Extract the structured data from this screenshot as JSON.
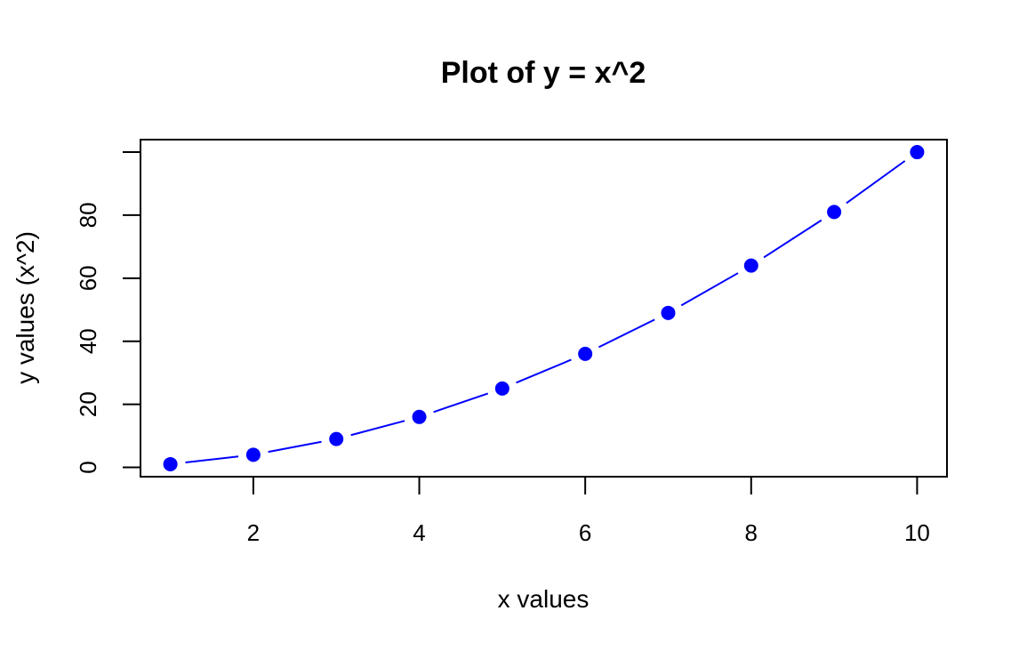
{
  "chart_data": {
    "type": "line",
    "title": "Plot of y = x^2",
    "xlabel": "x values",
    "ylabel": "y values (x^2)",
    "x": [
      1,
      2,
      3,
      4,
      5,
      6,
      7,
      8,
      9,
      10
    ],
    "series": [
      {
        "values": [
          1,
          4,
          9,
          16,
          25,
          36,
          49,
          64,
          81,
          100
        ],
        "color": "#0000ff"
      }
    ],
    "xlim": [
      0.64,
      10.36
    ],
    "ylim": [
      -2.96,
      103.96
    ],
    "xticks": [
      2,
      4,
      6,
      8,
      10
    ],
    "yticks": [
      0,
      20,
      40,
      60,
      80,
      100
    ],
    "ytick_labels": [
      "0",
      "20",
      "40",
      "60",
      "80",
      ""
    ],
    "grid": false,
    "markers": "filled-circle",
    "line_with_gaps": true
  }
}
